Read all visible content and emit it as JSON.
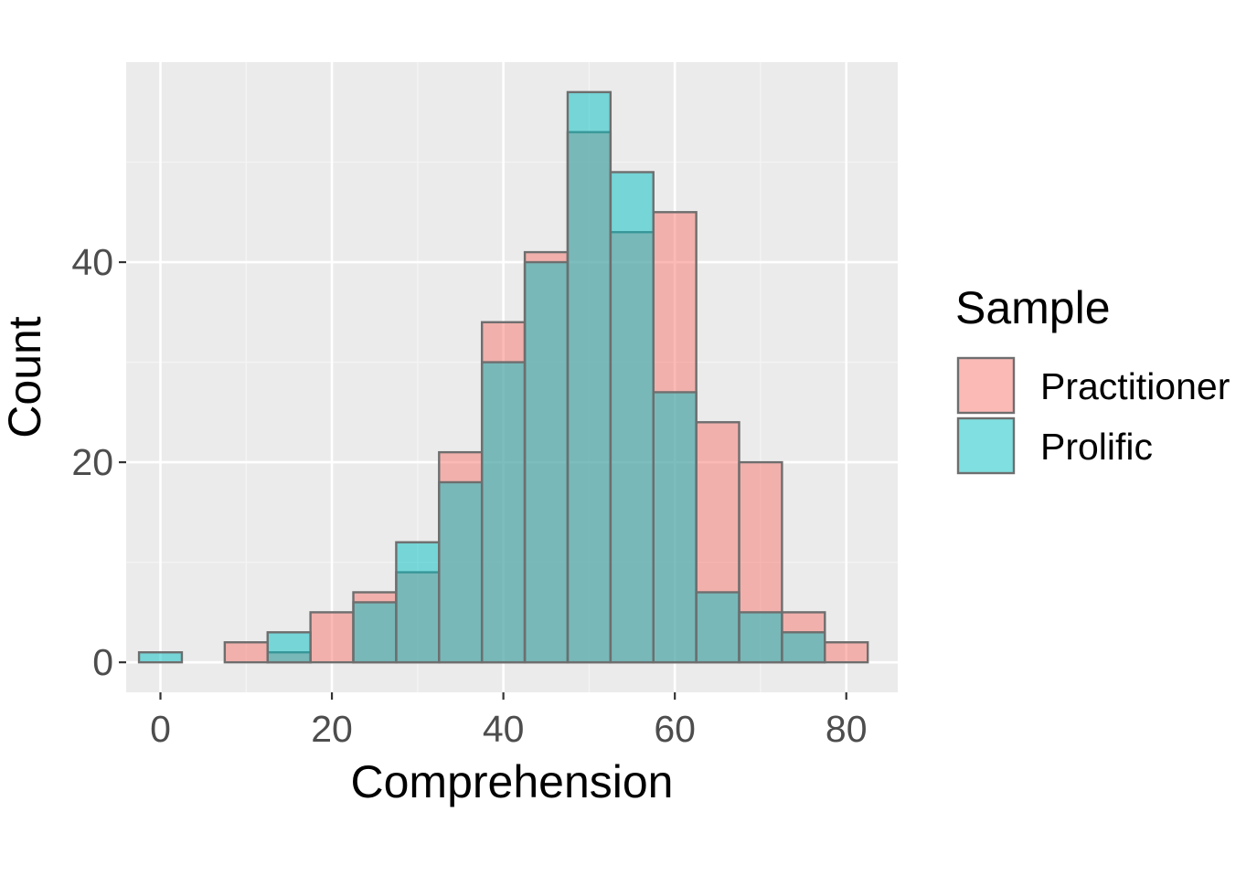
{
  "chart_data": {
    "type": "bar",
    "subtype": "overlaid-histogram",
    "title": "",
    "xlabel": "Comprehension",
    "ylabel": "Count",
    "xlim": [
      -4,
      86
    ],
    "ylim": [
      -3,
      60
    ],
    "x_ticks": [
      0,
      20,
      40,
      60,
      80
    ],
    "x_tick_labels": [
      "0",
      "20",
      "40",
      "60",
      "80"
    ],
    "y_ticks": [
      0,
      20,
      40
    ],
    "y_tick_labels": [
      "0",
      "20",
      "40"
    ],
    "bin_width": 5,
    "bin_centers": [
      0,
      5,
      10,
      15,
      20,
      25,
      30,
      35,
      40,
      45,
      50,
      55,
      60,
      65,
      70,
      75,
      80
    ],
    "series": [
      {
        "name": "Practitioner",
        "color": "#F8766D",
        "values": [
          0,
          0,
          2,
          1,
          5,
          7,
          9,
          21,
          34,
          41,
          53,
          43,
          45,
          24,
          20,
          5,
          2
        ]
      },
      {
        "name": "Prolific",
        "color": "#00BFC4",
        "values": [
          1,
          0,
          0,
          3,
          0,
          6,
          12,
          18,
          30,
          40,
          57,
          49,
          27,
          7,
          5,
          3,
          0
        ]
      }
    ],
    "legend": {
      "title": "Sample",
      "position": "right",
      "entries": [
        "Practitioner",
        "Prolific"
      ]
    },
    "grid": true
  }
}
